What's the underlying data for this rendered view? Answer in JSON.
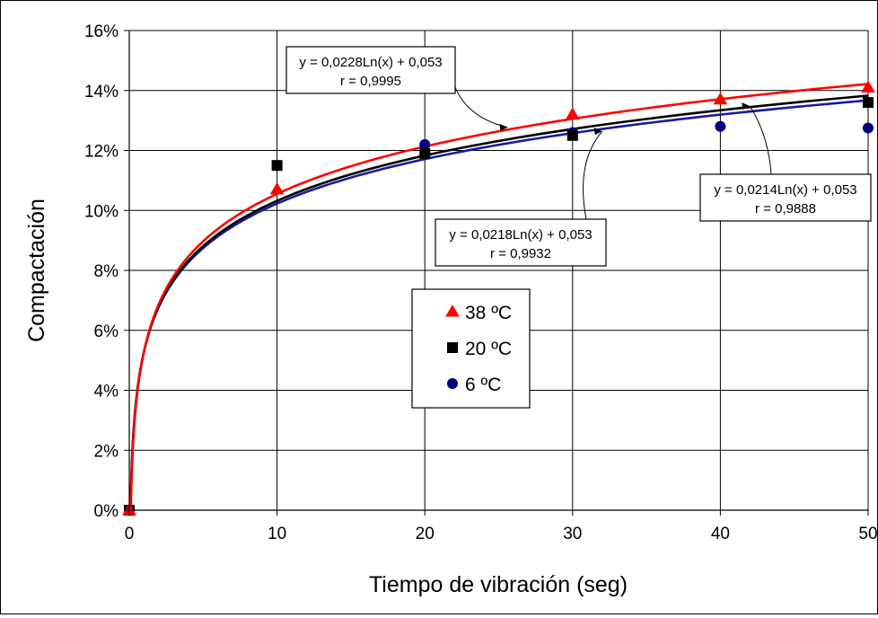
{
  "chart_data": {
    "type": "scatter",
    "xlabel": "Tiempo de vibración (seg)",
    "ylabel": "Compactación",
    "xlim": [
      0,
      50
    ],
    "ylim": [
      0,
      0.16
    ],
    "x_ticks": [
      "0",
      "10",
      "20",
      "30",
      "40",
      "50"
    ],
    "y_ticks": [
      "0%",
      "2%",
      "4%",
      "6%",
      "8%",
      "10%",
      "12%",
      "14%",
      "16%"
    ],
    "grid": true,
    "legend_position": "center",
    "series": [
      {
        "name": "38 ºC",
        "marker": "triangle",
        "color": "#ff0000",
        "line_color": "#ff0000",
        "x": [
          0,
          10,
          30,
          40,
          50
        ],
        "y": [
          0,
          0.107,
          0.132,
          0.137,
          0.141
        ],
        "fit": {
          "a": 0.0228,
          "b": 0.053
        },
        "equation": "y = 0,0228Ln(x) + 0,053",
        "r": "r = 0,9995"
      },
      {
        "name": "20 ºC",
        "marker": "square",
        "color": "#000000",
        "line_color": "#000000",
        "x": [
          0,
          10,
          20,
          30,
          50
        ],
        "y": [
          0,
          0.115,
          0.119,
          0.125,
          0.136
        ],
        "fit": {
          "a": 0.0218,
          "b": 0.053
        },
        "equation": "y = 0,0218Ln(x) + 0,053",
        "r": "r = 0,9932"
      },
      {
        "name": "6 ºC",
        "marker": "circle",
        "color": "#000080",
        "line_color": "#1a1aa0",
        "x": [
          0,
          10,
          20,
          30,
          40,
          50
        ],
        "y": [
          0,
          0.115,
          0.122,
          0.126,
          0.128,
          0.1275
        ],
        "fit": {
          "a": 0.0214,
          "b": 0.053
        },
        "equation": "y = 0,0214Ln(x) + 0,053",
        "r": "r = 0,9888"
      }
    ]
  }
}
